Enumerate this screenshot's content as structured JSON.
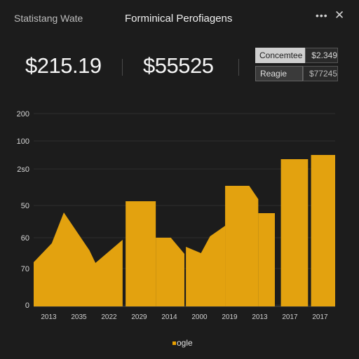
{
  "header": {
    "app_title": "Statistang Wate",
    "center_title": "Forminical Perofiagens",
    "more_label": "•••",
    "close_label": "✕"
  },
  "stats": {
    "primary": "$215.19",
    "secondary": "$55525"
  },
  "legend": {
    "items": [
      {
        "label": "Concemtee",
        "value": "$2.349"
      },
      {
        "label": "Reagie",
        "value": "$77245"
      }
    ]
  },
  "footer": {
    "logo_text": "ogle"
  },
  "colors": {
    "accent": "#e3a20f",
    "background": "#1c1c1c"
  },
  "chart_data": {
    "type": "area",
    "y_tick_labels": [
      "200",
      "100",
      "2s0",
      "50",
      "60",
      "70",
      "0"
    ],
    "x_tick_labels": [
      "2013",
      "2035",
      "2022",
      "2029",
      "2014",
      "2000",
      "2019",
      "2013",
      "2017",
      "2017"
    ],
    "segments": [
      {
        "points": [
          [
            0.0,
            63
          ],
          [
            0.6,
            90
          ],
          [
            1.0,
            134
          ],
          [
            1.85,
            80
          ],
          [
            2.05,
            62
          ],
          [
            2.95,
            95
          ]
        ]
      },
      {
        "points": [
          [
            3.05,
            150
          ],
          [
            4.05,
            150
          ]
        ]
      },
      {
        "points": [
          [
            4.05,
            98
          ],
          [
            4.55,
            98
          ],
          [
            5.0,
            75
          ]
        ]
      },
      {
        "points": [
          [
            5.05,
            85
          ],
          [
            5.55,
            76
          ],
          [
            5.85,
            100
          ],
          [
            6.35,
            115
          ]
        ]
      },
      {
        "points": [
          [
            6.35,
            172
          ],
          [
            7.15,
            172
          ],
          [
            7.45,
            153
          ]
        ]
      },
      {
        "points": [
          [
            7.45,
            133
          ],
          [
            8.0,
            133
          ]
        ]
      },
      {
        "points": [
          [
            8.2,
            210
          ],
          [
            9.1,
            210
          ]
        ]
      },
      {
        "points": [
          [
            9.2,
            216
          ],
          [
            10.0,
            216
          ]
        ]
      }
    ],
    "ylim": [
      0,
      275
    ],
    "xlim": [
      0,
      10
    ],
    "grid": true
  }
}
